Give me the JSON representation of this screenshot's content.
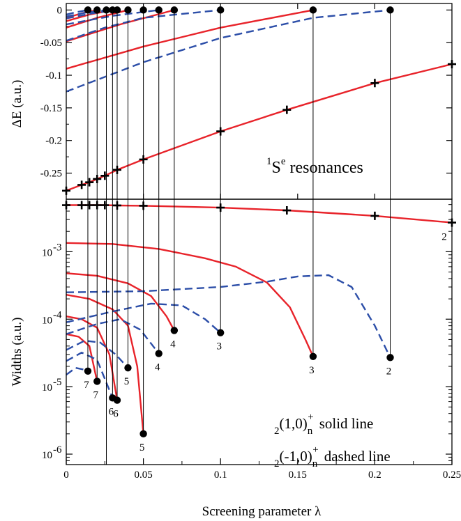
{
  "chart_data": [
    {
      "type": "line",
      "panel": "top",
      "ylabel": "ΔE (a.u.)",
      "xlim": [
        0,
        0.25
      ],
      "ylim": [
        -0.29,
        0.01
      ],
      "y_ticks": [
        0,
        -0.05,
        -0.1,
        -0.15,
        -0.2,
        -0.25
      ],
      "y_tick_labels": [
        "0",
        "-0.05",
        "-0.1",
        "-0.15",
        "-0.2",
        "-0.25"
      ],
      "annotation": {
        "sup_left": "1",
        "main": "S",
        "sup_right": "e",
        "rest": " resonances"
      },
      "series": [
        {
          "style": "solid",
          "color": "#e8232a",
          "marker": "plus",
          "x": [
            0,
            0.01,
            0.015,
            0.02,
            0.025,
            0.033,
            0.05,
            0.1,
            0.143,
            0.2,
            0.25
          ],
          "y": [
            -0.277,
            -0.268,
            -0.264,
            -0.259,
            -0.254,
            -0.245,
            -0.229,
            -0.186,
            -0.153,
            -0.112,
            -0.083
          ]
        },
        {
          "style": "solid",
          "color": "#e8232a",
          "x": [
            0,
            0.05,
            0.1,
            0.16
          ],
          "y": [
            -0.09,
            -0.056,
            -0.027,
            0
          ]
        },
        {
          "style": "solid",
          "color": "#e8232a",
          "x": [
            0,
            0.035,
            0.07
          ],
          "y": [
            -0.048,
            -0.022,
            0
          ]
        },
        {
          "style": "solid",
          "color": "#e8232a",
          "x": [
            0,
            0.02,
            0.04
          ],
          "y": [
            -0.027,
            -0.012,
            0
          ]
        },
        {
          "style": "solid",
          "color": "#e8232a",
          "x": [
            0,
            0.015,
            0.03
          ],
          "y": [
            -0.017,
            -0.007,
            0
          ]
        },
        {
          "style": "solid",
          "color": "#e8232a",
          "x": [
            0,
            0.01,
            0.02
          ],
          "y": [
            -0.012,
            -0.005,
            0
          ]
        },
        {
          "style": "dashed",
          "color": "#2c4ea8",
          "x": [
            0,
            0.05,
            0.1,
            0.16,
            0.21
          ],
          "y": [
            -0.125,
            -0.08,
            -0.043,
            -0.012,
            0
          ]
        },
        {
          "style": "dashed",
          "color": "#2c4ea8",
          "x": [
            0,
            0.025,
            0.05,
            0.1
          ],
          "y": [
            -0.047,
            -0.027,
            -0.012,
            0
          ]
        },
        {
          "style": "dashed",
          "color": "#2c4ea8",
          "x": [
            0,
            0.03,
            0.06
          ],
          "y": [
            -0.022,
            -0.009,
            0
          ]
        },
        {
          "style": "dashed",
          "color": "#2c4ea8",
          "x": [
            0,
            0.017,
            0.033
          ],
          "y": [
            -0.013,
            -0.005,
            0
          ]
        },
        {
          "style": "dashed",
          "color": "#2c4ea8",
          "x": [
            0,
            0.013,
            0.026
          ],
          "y": [
            -0.01,
            -0.004,
            0
          ]
        },
        {
          "style": "dashed",
          "color": "#2c4ea8",
          "x": [
            0,
            0.007,
            0.014
          ],
          "y": [
            -0.007,
            -0.003,
            0
          ]
        }
      ],
      "threshold_points": {
        "x": [
          0.014,
          0.02,
          0.026,
          0.03,
          0.033,
          0.04,
          0.05,
          0.06,
          0.07,
          0.1,
          0.16,
          0.21
        ],
        "y": 0
      }
    },
    {
      "type": "line",
      "panel": "bottom",
      "ylabel": "Widths (a.u.)",
      "xlabel": "Screening parameter λ",
      "xlim": [
        0,
        0.25
      ],
      "x_ticks": [
        0,
        0.05,
        0.1,
        0.15,
        0.2,
        0.25
      ],
      "x_tick_labels": [
        "0",
        "0.05",
        "0.1",
        "0.15",
        "0.2",
        "0.25"
      ],
      "y_scale": "log",
      "ylim": [
        7e-07,
        0.006
      ],
      "y_ticks": [
        1e-06,
        1e-05,
        0.0001,
        0.001
      ],
      "y_tick_labels": [
        {
          "base": "10",
          "exp": "-6"
        },
        {
          "base": "10",
          "exp": "-5"
        },
        {
          "base": "10",
          "exp": "-4"
        },
        {
          "base": "10",
          "exp": "-3"
        }
      ],
      "legend": [
        {
          "pre": "2",
          "main": "(1,0)",
          "sub": "n",
          "sup": "+",
          "text": "solid line"
        },
        {
          "pre": "2",
          "main": "(-1,0)",
          "sub": "n",
          "sup": "+",
          "text": "dashed line"
        }
      ],
      "series": [
        {
          "style": "solid",
          "color": "#e8232a",
          "marker": "plus",
          "x": [
            0,
            0.01,
            0.015,
            0.02,
            0.025,
            0.033,
            0.05,
            0.1,
            0.143,
            0.2,
            0.25
          ],
          "y": [
            0.0049,
            0.0049,
            0.0049,
            0.0049,
            0.0049,
            0.00485,
            0.0048,
            0.0045,
            0.0041,
            0.0034,
            0.0027
          ]
        },
        {
          "style": "solid",
          "color": "#e8232a",
          "x": [
            0,
            0.03,
            0.06,
            0.09,
            0.11,
            0.13,
            0.145,
            0.155,
            0.16
          ],
          "y": [
            0.00135,
            0.0013,
            0.0011,
            0.0008,
            0.0006,
            0.00035,
            0.00015,
            5e-05,
            2.8e-05
          ]
        },
        {
          "style": "solid",
          "color": "#e8232a",
          "x": [
            0,
            0.02,
            0.04,
            0.055,
            0.065,
            0.07
          ],
          "y": [
            0.00048,
            0.00044,
            0.00034,
            0.00022,
            0.00011,
            6.8e-05
          ]
        },
        {
          "style": "solid",
          "color": "#e8232a",
          "x": [
            0,
            0.015,
            0.03,
            0.04,
            0.046,
            0.05
          ],
          "y": [
            0.00023,
            0.0002,
            0.00014,
            8e-05,
            2e-05,
            2e-06
          ]
        },
        {
          "style": "solid",
          "color": "#e8232a",
          "x": [
            0,
            0.01,
            0.02,
            0.028,
            0.033
          ],
          "y": [
            0.00011,
            0.0001,
            7.5e-05,
            3e-05,
            6.3e-06
          ]
        },
        {
          "style": "solid",
          "color": "#e8232a",
          "x": [
            0,
            0.008,
            0.015,
            0.02
          ],
          "y": [
            6e-05,
            5.5e-05,
            4e-05,
            1.2e-05
          ]
        },
        {
          "style": "dashed",
          "color": "#2c4ea8",
          "x": [
            0,
            0.05,
            0.1,
            0.13,
            0.15,
            0.17,
            0.185,
            0.2,
            0.21
          ],
          "y": [
            0.00025,
            0.00026,
            0.0003,
            0.00036,
            0.00043,
            0.00045,
            0.0003,
            8e-05,
            2.7e-05
          ]
        },
        {
          "style": "dashed",
          "color": "#2c4ea8",
          "x": [
            0,
            0.03,
            0.055,
            0.075,
            0.09,
            0.1
          ],
          "y": [
            9e-05,
            0.00013,
            0.00017,
            0.00016,
            0.0001,
            6.3e-05
          ]
        },
        {
          "style": "dashed",
          "color": "#2c4ea8",
          "x": [
            0,
            0.02,
            0.035,
            0.048,
            0.06
          ],
          "y": [
            6e-05,
            8.5e-05,
            0.0001,
            7e-05,
            3.1e-05
          ]
        },
        {
          "style": "dashed",
          "color": "#2c4ea8",
          "x": [
            0,
            0.012,
            0.022,
            0.032,
            0.04
          ],
          "y": [
            3.5e-05,
            4.8e-05,
            4.5e-05,
            3e-05,
            1.9e-05
          ]
        },
        {
          "style": "dashed",
          "color": "#2c4ea8",
          "x": [
            0,
            0.01,
            0.02,
            0.03
          ],
          "y": [
            2.4e-05,
            3.2e-05,
            2.5e-05,
            6.8e-06
          ]
        },
        {
          "style": "dashed",
          "color": "#2c4ea8",
          "x": [
            0,
            0.006,
            0.011,
            0.014
          ],
          "y": [
            1.5e-05,
            1.9e-05,
            1.8e-05,
            1.7e-05
          ]
        }
      ],
      "end_points": {
        "x": [
          0.014,
          0.02,
          0.03,
          0.033,
          0.04,
          0.05,
          0.06,
          0.07,
          0.1,
          0.16,
          0.21
        ],
        "y": [
          1.7e-05,
          1.2e-05,
          6.8e-06,
          6.3e-06,
          1.9e-05,
          2e-06,
          3.1e-05,
          6.8e-05,
          6.3e-05,
          2.8e-05,
          2.7e-05
        ],
        "labels": [
          "7",
          "7",
          "6",
          "6",
          "5",
          "5",
          "4",
          "4",
          "3",
          "3",
          "2"
        ]
      },
      "extra_labels": [
        {
          "x": 0.245,
          "y": 0.0015,
          "text": "2"
        }
      ],
      "connector_lines": {
        "x": [
          0.014,
          0.02,
          0.026,
          0.03,
          0.033,
          0.04,
          0.05,
          0.06,
          0.07,
          0.1,
          0.16,
          0.21
        ]
      }
    }
  ]
}
